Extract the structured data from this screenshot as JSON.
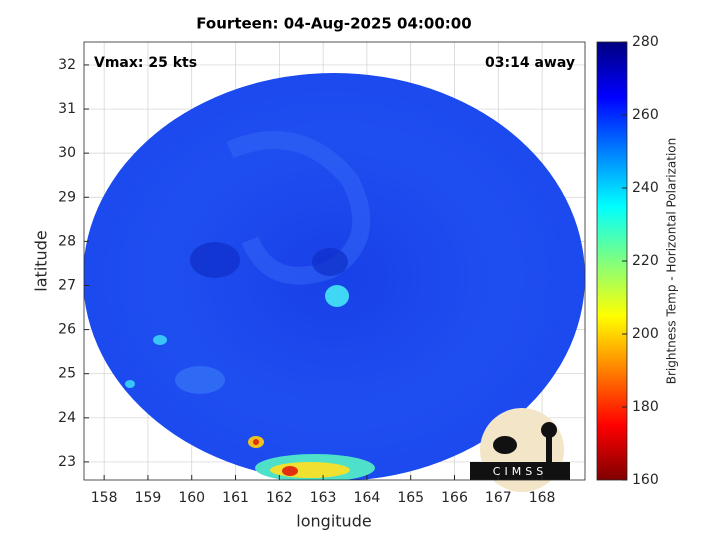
{
  "chart_data": {
    "type": "map",
    "title": "Fourteen: 04-Aug-2025 04:00:00",
    "annotations": [
      "Vmax: 25 kts",
      "03:14 away"
    ],
    "x_label": "longitude",
    "y_label": "latitude",
    "xlim": [
      157.54,
      168.98
    ],
    "ylim": [
      22.59,
      32.52
    ],
    "xticks": [
      158,
      159,
      160,
      161,
      162,
      163,
      164,
      165,
      166,
      167,
      168
    ],
    "yticks": [
      23,
      24,
      25,
      26,
      27,
      28,
      29,
      30,
      31,
      32
    ],
    "grid": true,
    "colorbar": {
      "label": "Brightness Temp - Horizontal Polarization",
      "lim": [
        160,
        280
      ],
      "ticks": [
        160,
        180,
        200,
        220,
        240,
        260,
        280
      ]
    },
    "logo": "CIMSS"
  }
}
